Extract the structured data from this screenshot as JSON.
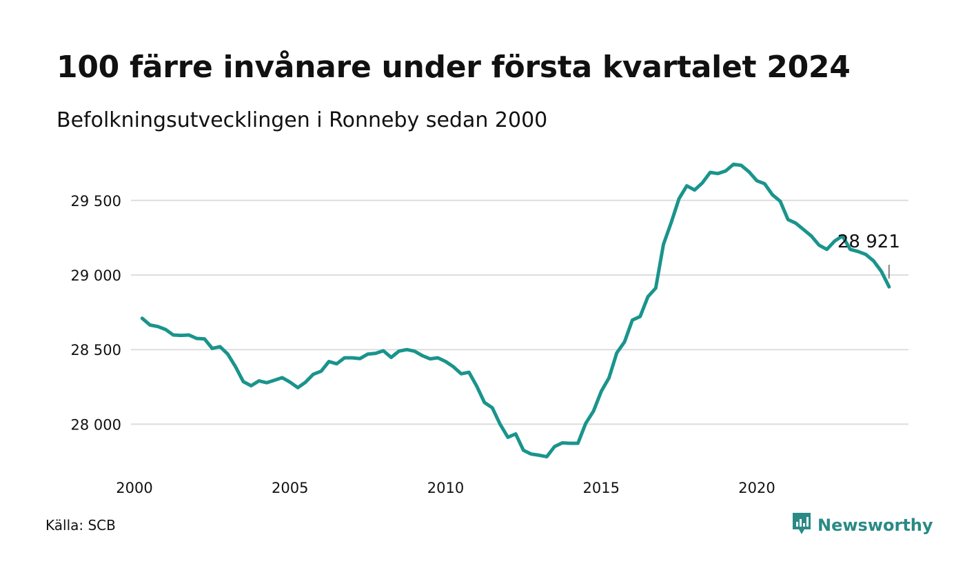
{
  "header": {
    "title": "100 färre invånare under första kvartalet 2024",
    "subtitle": "Befolkningsutvecklingen i Ronneby sedan 2000"
  },
  "footer": {
    "source": "Källa: SCB",
    "brand": "Newsworthy",
    "brand_icon": "bar-chart-speech-bubble-icon"
  },
  "colors": {
    "line": "#1a948c",
    "grid": "#dddddd",
    "text": "#111111",
    "brand": "#2a8a85"
  },
  "chart_data": {
    "type": "line",
    "title": "100 färre invånare under första kvartalet 2024",
    "subtitle": "Befolkningsutvecklingen i Ronneby sedan 2000",
    "xlabel": "",
    "ylabel": "",
    "xlim": [
      2000,
      2025
    ],
    "ylim": [
      27680,
      29800
    ],
    "x_ticks": [
      2000,
      2005,
      2010,
      2015,
      2020
    ],
    "x_tick_labels": [
      "2000",
      "2005",
      "2010",
      "2015",
      "2020"
    ],
    "y_ticks": [
      28000,
      28500,
      29000,
      29500
    ],
    "y_tick_labels": [
      "28 000",
      "28 500",
      "29 000",
      "29 500"
    ],
    "grid": "horizontal",
    "legend": "none",
    "end_label": "28 921",
    "series": [
      {
        "x": [
          2000.25,
          2000.5,
          2000.75,
          2001.0,
          2001.25,
          2001.5,
          2001.75,
          2002.0,
          2002.25,
          2002.5,
          2002.75,
          2003.0,
          2003.25,
          2003.5,
          2003.75,
          2004.0,
          2004.25,
          2004.5,
          2004.75,
          2005.0,
          2005.25,
          2005.5,
          2005.75,
          2006.0,
          2006.25,
          2006.5,
          2006.75,
          2007.0,
          2007.25,
          2007.5,
          2007.75,
          2008.0,
          2008.25,
          2008.5,
          2008.75,
          2009.0,
          2009.25,
          2009.5,
          2009.75,
          2010.0,
          2010.25,
          2010.5,
          2010.75,
          2011.0,
          2011.25,
          2011.5,
          2011.75,
          2012.0,
          2012.25,
          2012.5,
          2012.75,
          2013.0,
          2013.25,
          2013.5,
          2013.75,
          2014.0,
          2014.25,
          2014.5,
          2014.75,
          2015.0,
          2015.25,
          2015.5,
          2015.75,
          2016.0,
          2016.25,
          2016.5,
          2016.75,
          2017.0,
          2017.25,
          2017.5,
          2017.75,
          2018.0,
          2018.25,
          2018.5,
          2018.75,
          2019.0,
          2019.25,
          2019.5,
          2019.75,
          2020.0,
          2020.25,
          2020.5,
          2020.75,
          2021.0,
          2021.25,
          2021.5,
          2021.75,
          2022.0,
          2022.25,
          2022.5,
          2022.75,
          2023.0,
          2023.25,
          2023.5,
          2023.75,
          2024.0,
          2024.25
        ],
        "values": [
          28710,
          28665,
          28655,
          28635,
          28598,
          28595,
          28598,
          28575,
          28572,
          28508,
          28520,
          28470,
          28385,
          28285,
          28258,
          28290,
          28278,
          28295,
          28312,
          28282,
          28245,
          28282,
          28335,
          28355,
          28420,
          28405,
          28445,
          28445,
          28440,
          28470,
          28475,
          28492,
          28448,
          28490,
          28500,
          28490,
          28460,
          28438,
          28445,
          28420,
          28385,
          28338,
          28348,
          28255,
          28145,
          28110,
          28000,
          27912,
          27935,
          27825,
          27800,
          27792,
          27782,
          27850,
          27875,
          27872,
          27872,
          28005,
          28088,
          28220,
          28310,
          28478,
          28552,
          28698,
          28722,
          28855,
          28912,
          29205,
          29352,
          29512,
          29598,
          29570,
          29618,
          29688,
          29680,
          29698,
          29742,
          29735,
          29692,
          29632,
          29612,
          29538,
          29495,
          29372,
          29348,
          29305,
          29262,
          29200,
          29172,
          29228,
          29262,
          29172,
          29158,
          29138,
          29095,
          29025,
          28921
        ]
      }
    ]
  }
}
